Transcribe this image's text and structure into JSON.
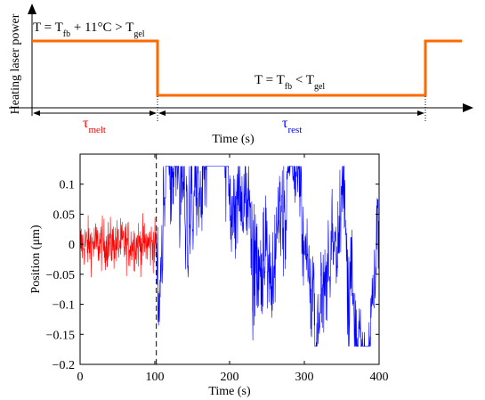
{
  "chart_data": [
    {
      "type": "line",
      "ylabel": "Heating laser power",
      "xlabel": "Time (s)",
      "annotations": {
        "high": {
          "parts": [
            "T = T",
            "fb",
            " + 11°C > T",
            "gel"
          ]
        },
        "low": {
          "parts": [
            "T = T",
            "fb",
            " < T",
            "gel"
          ]
        },
        "melt": {
          "parts": [
            "τ",
            "melt"
          ]
        },
        "rest": {
          "parts": [
            "τ",
            "rest"
          ]
        }
      },
      "series": [
        {
          "color": "#ff6a00",
          "x": [
            0,
            100,
            100,
            300,
            300,
            330
          ],
          "values": [
            1,
            1,
            0,
            0,
            1,
            1
          ]
        }
      ],
      "colors": {
        "melt": "#ff0000",
        "rest": "#0000ff",
        "power": "#ff6a00"
      }
    },
    {
      "type": "line",
      "xlabel": "Time (s)",
      "ylabel": "Position (μm)",
      "xlim": [
        0,
        400
      ],
      "ylim": [
        -0.2,
        0.15
      ],
      "xticks": [
        "0",
        "100",
        "200",
        "300",
        "400"
      ],
      "yticks": [
        "−0.2",
        "−0.15",
        "−0.1",
        "−0.05",
        "0",
        "0.05",
        "0.1"
      ],
      "marker_x": 102,
      "series": [
        {
          "color": "#ff0000",
          "x_range": [
            0,
            102
          ],
          "amplitude": 0.05,
          "style": "noise"
        },
        {
          "color": "#0000ff",
          "x_range": [
            102,
            400
          ],
          "amplitude": 0.13,
          "style": "noise"
        }
      ]
    }
  ]
}
